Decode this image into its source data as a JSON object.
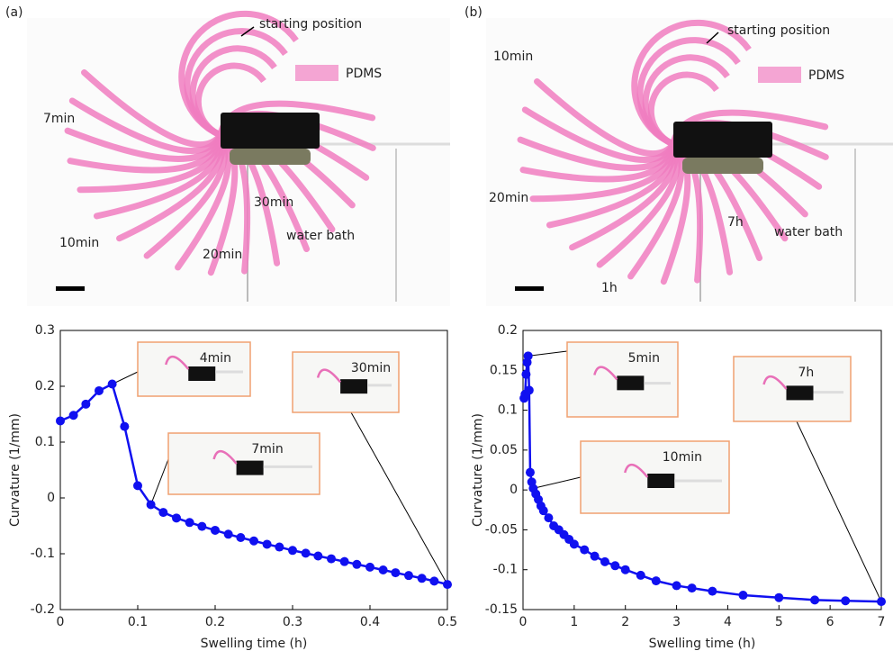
{
  "photos": [
    {
      "label": "(a)",
      "legend": "PDMS",
      "bath": "water bath",
      "start": "starting position",
      "annotations": [
        "7min",
        "10min",
        "20min",
        "30min"
      ]
    },
    {
      "label": "(b)",
      "legend": "PDMS",
      "bath": "water bath",
      "start": "starting position",
      "annotations": [
        "10min",
        "20min",
        "1h",
        "7h"
      ]
    }
  ],
  "chart_data": [
    {
      "type": "line",
      "xlabel": "Swelling time (h)",
      "ylabel": "Curvature (1/mm)",
      "xlim": [
        0,
        0.5
      ],
      "ylim": [
        -0.2,
        0.3
      ],
      "xticks": [
        0,
        0.1,
        0.2,
        0.3,
        0.4,
        0.5
      ],
      "yticks": [
        -0.2,
        -0.1,
        0,
        0.1,
        0.2,
        0.3
      ],
      "annotations": [
        "4min",
        "7min",
        "30min"
      ],
      "series": [
        {
          "color": "#1010f0",
          "x": [
            0,
            0.017,
            0.033,
            0.05,
            0.067,
            0.083,
            0.1,
            0.117,
            0.133,
            0.15,
            0.167,
            0.183,
            0.2,
            0.217,
            0.233,
            0.25,
            0.267,
            0.283,
            0.3,
            0.317,
            0.333,
            0.35,
            0.367,
            0.383,
            0.4,
            0.417,
            0.433,
            0.45,
            0.467,
            0.483,
            0.5
          ],
          "values": [
            0.138,
            0.148,
            0.168,
            0.192,
            0.204,
            0.128,
            0.022,
            -0.012,
            -0.026,
            -0.036,
            -0.044,
            -0.051,
            -0.058,
            -0.065,
            -0.071,
            -0.077,
            -0.083,
            -0.088,
            -0.094,
            -0.099,
            -0.104,
            -0.109,
            -0.114,
            -0.119,
            -0.124,
            -0.129,
            -0.134,
            -0.139,
            -0.144,
            -0.149,
            -0.155
          ]
        }
      ]
    },
    {
      "type": "line",
      "xlabel": "Swelling time (h)",
      "ylabel": "Curvature (1/mm)",
      "xlim": [
        0,
        7
      ],
      "ylim": [
        -0.15,
        0.2
      ],
      "xticks": [
        0,
        1,
        2,
        3,
        4,
        5,
        6,
        7
      ],
      "yticks": [
        -0.15,
        -0.1,
        -0.05,
        0,
        0.05,
        0.1,
        0.15,
        0.2
      ],
      "annotations": [
        "5min",
        "10min",
        "7h"
      ],
      "series": [
        {
          "color": "#1010f0",
          "x": [
            0.02,
            0.04,
            0.06,
            0.08,
            0.1,
            0.12,
            0.14,
            0.17,
            0.2,
            0.25,
            0.3,
            0.35,
            0.4,
            0.5,
            0.6,
            0.7,
            0.8,
            0.9,
            1,
            1.2,
            1.4,
            1.6,
            1.8,
            2,
            2.3,
            2.6,
            3,
            3.3,
            3.7,
            4.3,
            5,
            5.7,
            6.3,
            7
          ],
          "values": [
            0.115,
            0.12,
            0.145,
            0.16,
            0.168,
            0.125,
            0.022,
            0.01,
            0.002,
            -0.005,
            -0.012,
            -0.02,
            -0.026,
            -0.035,
            -0.045,
            -0.05,
            -0.056,
            -0.062,
            -0.068,
            -0.075,
            -0.083,
            -0.09,
            -0.095,
            -0.1,
            -0.107,
            -0.114,
            -0.12,
            -0.123,
            -0.127,
            -0.132,
            -0.135,
            -0.138,
            -0.139,
            -0.14
          ]
        }
      ]
    }
  ]
}
